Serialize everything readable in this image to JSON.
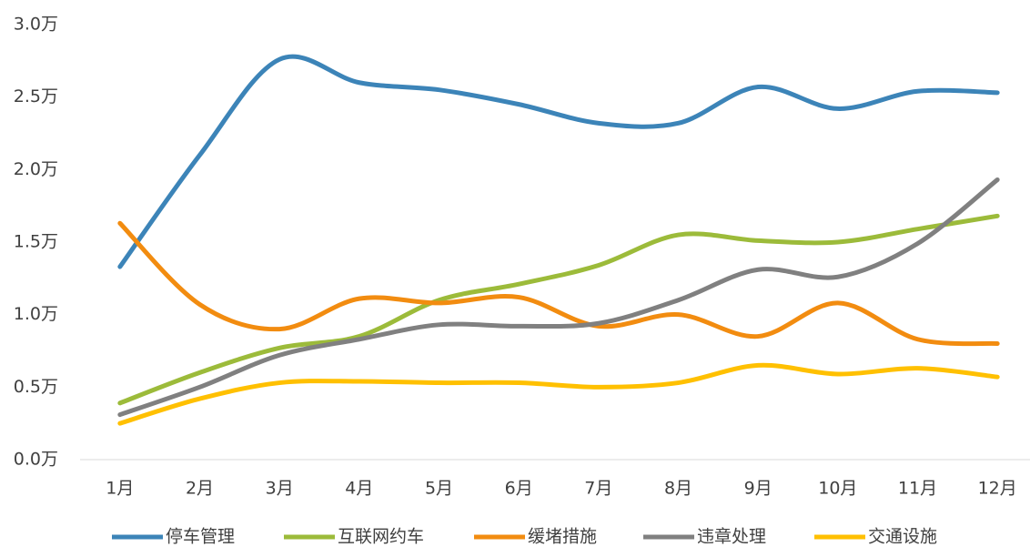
{
  "chart_data": {
    "type": "line",
    "smooth": true,
    "categories": [
      "1月",
      "2月",
      "3月",
      "4月",
      "5月",
      "6月",
      "7月",
      "8月",
      "9月",
      "10月",
      "11月",
      "12月"
    ],
    "series": [
      {
        "name": "停车管理",
        "color": "#3c84b8",
        "values": [
          1.33,
          2.1,
          2.76,
          2.6,
          2.55,
          2.45,
          2.32,
          2.32,
          2.57,
          2.42,
          2.54,
          2.53
        ]
      },
      {
        "name": "互联网约车",
        "color": "#9cbb3a",
        "values": [
          0.39,
          0.6,
          0.77,
          0.85,
          1.1,
          1.21,
          1.34,
          1.55,
          1.51,
          1.5,
          1.59,
          1.68
        ]
      },
      {
        "name": "缓堵措施",
        "color": "#f28c10",
        "values": [
          1.63,
          1.07,
          0.9,
          1.11,
          1.08,
          1.12,
          0.92,
          1.0,
          0.85,
          1.08,
          0.83,
          0.8
        ]
      },
      {
        "name": "违章处理",
        "color": "#808080",
        "values": [
          0.31,
          0.5,
          0.72,
          0.83,
          0.93,
          0.92,
          0.94,
          1.1,
          1.31,
          1.26,
          1.49,
          1.93
        ]
      },
      {
        "name": "交通设施",
        "color": "#ffc000",
        "values": [
          0.25,
          0.42,
          0.53,
          0.54,
          0.53,
          0.53,
          0.5,
          0.53,
          0.65,
          0.59,
          0.63,
          0.57
        ]
      }
    ],
    "ylim": [
      0,
      3
    ],
    "yticks": [
      {
        "value": 0,
        "label": "0.0万"
      },
      {
        "value": 0.5,
        "label": "0.5万"
      },
      {
        "value": 1,
        "label": "1.0万"
      },
      {
        "value": 1.5,
        "label": "1.5万"
      },
      {
        "value": 2,
        "label": "2.0万"
      },
      {
        "value": 2.5,
        "label": "2.5万"
      },
      {
        "value": 3,
        "label": "3.0万"
      }
    ],
    "grid": false,
    "legend": "bottom"
  }
}
